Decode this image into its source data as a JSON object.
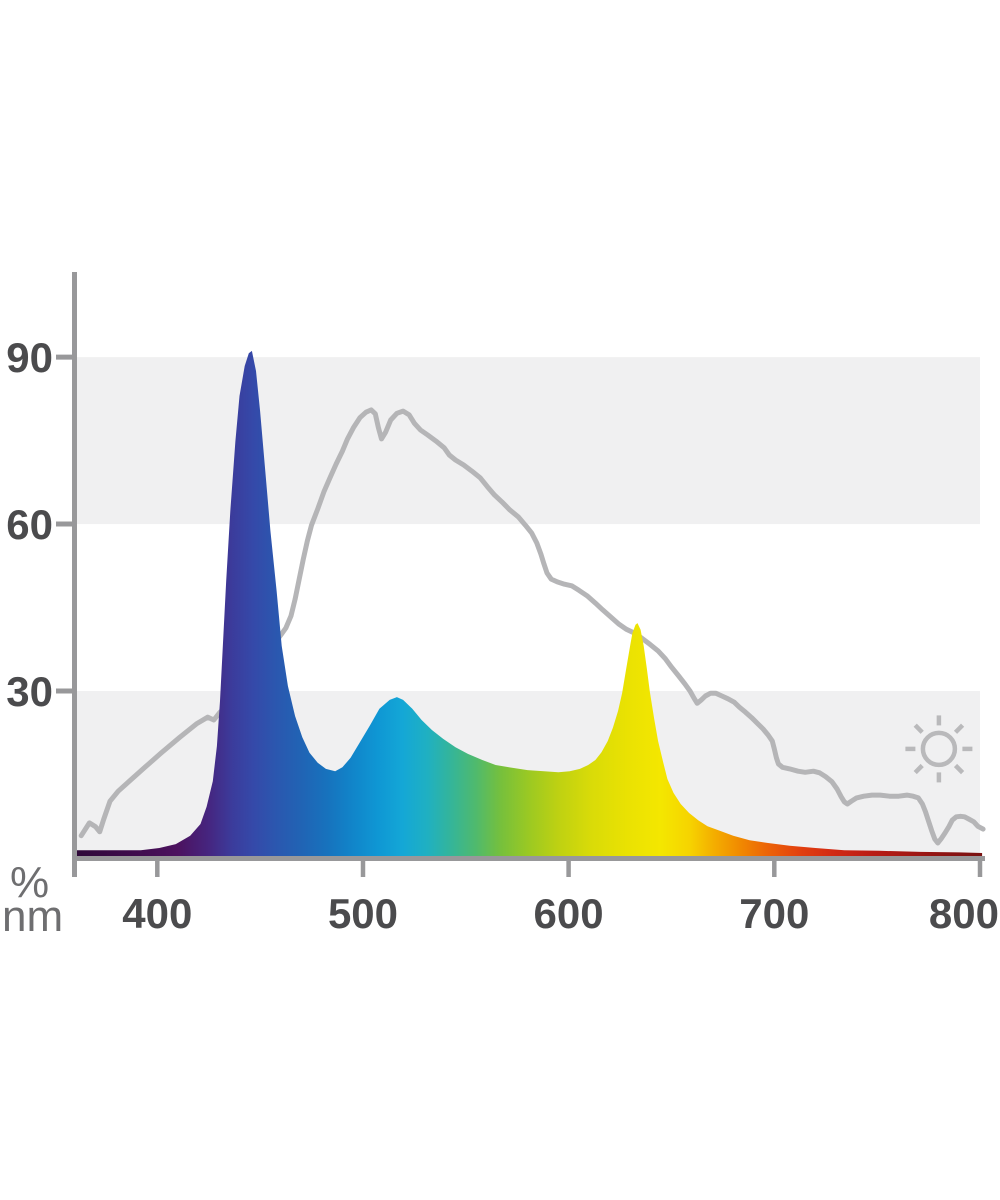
{
  "colors": {
    "background": "#ffffff",
    "band": "#f0f0f1",
    "axis": "#98989a",
    "reference_curve": "#b5b5b7",
    "tick_label": "#4b4b4d",
    "unit_label": "#6e6e70",
    "sun_icon": "#b9b9bb"
  },
  "chart_data": {
    "type": "area",
    "title": "",
    "xlabel": "nm",
    "ylabel": "%",
    "xlim": [
      360,
      802
    ],
    "ylim": [
      0,
      105
    ],
    "x_ticks": [
      400,
      500,
      600,
      700,
      800
    ],
    "y_ticks": [
      90,
      60,
      30
    ],
    "grid_bands_pct": [
      [
        60,
        90
      ],
      [
        0,
        30
      ]
    ],
    "legend": "none",
    "annotations": [
      {
        "type": "sun-icon",
        "x_nm": 780,
        "y_pct": 19.6
      }
    ],
    "gradient_stops": [
      [
        360,
        "#2e0838"
      ],
      [
        390,
        "#400d4e"
      ],
      [
        410,
        "#4c125f"
      ],
      [
        425,
        "#46257f"
      ],
      [
        437,
        "#3b3c9c"
      ],
      [
        447,
        "#3549a9"
      ],
      [
        458,
        "#2b57af"
      ],
      [
        470,
        "#2163b4"
      ],
      [
        483,
        "#1772bd"
      ],
      [
        495,
        "#1184c9"
      ],
      [
        508,
        "#0f97d4"
      ],
      [
        520,
        "#14a7d6"
      ],
      [
        532,
        "#1fb0c2"
      ],
      [
        544,
        "#35b598"
      ],
      [
        556,
        "#50ba6c"
      ],
      [
        568,
        "#76c03c"
      ],
      [
        582,
        "#9cc922"
      ],
      [
        596,
        "#bed112"
      ],
      [
        612,
        "#d9db08"
      ],
      [
        630,
        "#eae202"
      ],
      [
        646,
        "#f4e700"
      ],
      [
        660,
        "#f6d400"
      ],
      [
        672,
        "#f4ae00"
      ],
      [
        684,
        "#f18c00"
      ],
      [
        698,
        "#ec6407"
      ],
      [
        714,
        "#e2400f"
      ],
      [
        730,
        "#d22a14"
      ],
      [
        748,
        "#bb1d16"
      ],
      [
        768,
        "#a21714"
      ],
      [
        785,
        "#8c1312"
      ],
      [
        801,
        "#7a1111"
      ]
    ],
    "series": [
      {
        "name": "led-spectrum",
        "style": "area-spectral-gradient",
        "points": [
          [
            360,
            1.4
          ],
          [
            385,
            1.4
          ],
          [
            392,
            1.4
          ],
          [
            401,
            1.8
          ],
          [
            409,
            2.5
          ],
          [
            416,
            4
          ],
          [
            421,
            6.1
          ],
          [
            424,
            9.2
          ],
          [
            427,
            13.8
          ],
          [
            429,
            20.1
          ],
          [
            430.5,
            28.2
          ],
          [
            432,
            39
          ],
          [
            433.5,
            49.8
          ],
          [
            435.5,
            62.3
          ],
          [
            438,
            74.9
          ],
          [
            440,
            83
          ],
          [
            442.5,
            88.4
          ],
          [
            444.5,
            90.7
          ],
          [
            446,
            91.1
          ],
          [
            448,
            87.5
          ],
          [
            450,
            80.3
          ],
          [
            452.5,
            69.5
          ],
          [
            455,
            58.8
          ],
          [
            458,
            48
          ],
          [
            460.5,
            38.1
          ],
          [
            463.5,
            30.9
          ],
          [
            467,
            25.5
          ],
          [
            470.5,
            21.7
          ],
          [
            474,
            18.9
          ],
          [
            478,
            17.1
          ],
          [
            482,
            16
          ],
          [
            486.5,
            15.6
          ],
          [
            490,
            16.3
          ],
          [
            494,
            18
          ],
          [
            498.5,
            20.8
          ],
          [
            503.5,
            23.9
          ],
          [
            508,
            26.8
          ],
          [
            513,
            28.4
          ],
          [
            516.5,
            28.9
          ],
          [
            519.5,
            28.4
          ],
          [
            524,
            26.8
          ],
          [
            528.5,
            24.8
          ],
          [
            533.5,
            23
          ],
          [
            539,
            21.4
          ],
          [
            545,
            19.9
          ],
          [
            551,
            18.7
          ],
          [
            558,
            17.6
          ],
          [
            564.5,
            16.7
          ],
          [
            572.5,
            16.2
          ],
          [
            580,
            15.8
          ],
          [
            588,
            15.6
          ],
          [
            595,
            15.4
          ],
          [
            600.5,
            15.6
          ],
          [
            605.5,
            16
          ],
          [
            609.5,
            16.7
          ],
          [
            613,
            17.6
          ],
          [
            616,
            19
          ],
          [
            619,
            21
          ],
          [
            621.5,
            23.4
          ],
          [
            624,
            26.4
          ],
          [
            626,
            29.6
          ],
          [
            628,
            34
          ],
          [
            630,
            38.3
          ],
          [
            631,
            40.4
          ],
          [
            632.5,
            41.9
          ],
          [
            633.5,
            42.2
          ],
          [
            635,
            41
          ],
          [
            636.5,
            38.1
          ],
          [
            638,
            34.1
          ],
          [
            639.5,
            29.8
          ],
          [
            641.5,
            25.2
          ],
          [
            643.5,
            21
          ],
          [
            646,
            17.1
          ],
          [
            648,
            14.2
          ],
          [
            651,
            11.7
          ],
          [
            654.5,
            9.7
          ],
          [
            658.5,
            8.1
          ],
          [
            663,
            6.8
          ],
          [
            667.5,
            5.7
          ],
          [
            673.5,
            4.9
          ],
          [
            680,
            4
          ],
          [
            688,
            3.2
          ],
          [
            697,
            2.7
          ],
          [
            707.5,
            2.2
          ],
          [
            720,
            1.8
          ],
          [
            734,
            1.4
          ],
          [
            751,
            1.3
          ],
          [
            771,
            1.1
          ],
          [
            790,
            1
          ],
          [
            801,
            0.9
          ]
        ]
      },
      {
        "name": "reference-curve",
        "style": "gray-line",
        "points": [
          [
            363,
            4
          ],
          [
            367,
            6.3
          ],
          [
            370,
            5.6
          ],
          [
            372,
            4.7
          ],
          [
            374,
            7
          ],
          [
            377,
            10.2
          ],
          [
            381,
            12
          ],
          [
            387,
            14
          ],
          [
            394,
            16.3
          ],
          [
            402,
            18.9
          ],
          [
            411,
            21.7
          ],
          [
            419,
            24.1
          ],
          [
            424.5,
            25.3
          ],
          [
            427.5,
            24.8
          ],
          [
            430.5,
            26.2
          ],
          [
            436,
            28
          ],
          [
            442,
            30.4
          ],
          [
            447,
            32.9
          ],
          [
            451.5,
            35.6
          ],
          [
            455,
            37.7
          ],
          [
            459,
            39.5
          ],
          [
            462.5,
            41.3
          ],
          [
            465,
            43.5
          ],
          [
            467,
            46.5
          ],
          [
            469,
            50.1
          ],
          [
            471,
            53.7
          ],
          [
            473,
            57
          ],
          [
            475,
            59.8
          ],
          [
            478,
            62.7
          ],
          [
            481,
            65.8
          ],
          [
            484,
            68.3
          ],
          [
            487,
            70.8
          ],
          [
            490,
            73.1
          ],
          [
            492.5,
            75.3
          ],
          [
            495.5,
            77.4
          ],
          [
            498.5,
            79.1
          ],
          [
            501.5,
            80.1
          ],
          [
            504,
            80.5
          ],
          [
            506,
            79.8
          ],
          [
            507.5,
            77.3
          ],
          [
            509,
            75.3
          ],
          [
            511,
            76.5
          ],
          [
            513.5,
            78.7
          ],
          [
            516.5,
            79.9
          ],
          [
            519.5,
            80.3
          ],
          [
            522.5,
            79.6
          ],
          [
            525,
            78.1
          ],
          [
            528,
            76.9
          ],
          [
            531.5,
            76
          ],
          [
            535.5,
            74.9
          ],
          [
            539.5,
            73.7
          ],
          [
            542,
            72.4
          ],
          [
            545,
            71.5
          ],
          [
            549,
            70.6
          ],
          [
            553,
            69.5
          ],
          [
            557,
            68.3
          ],
          [
            560.5,
            66.7
          ],
          [
            564,
            65.2
          ],
          [
            567.5,
            64
          ],
          [
            571.5,
            62.5
          ],
          [
            575.5,
            61.3
          ],
          [
            579,
            59.8
          ],
          [
            582,
            58.4
          ],
          [
            584.5,
            56.6
          ],
          [
            586.5,
            54.6
          ],
          [
            588,
            52.8
          ],
          [
            589.5,
            51.2
          ],
          [
            591.5,
            50.1
          ],
          [
            594.5,
            49.6
          ],
          [
            598,
            49.2
          ],
          [
            601.5,
            48.9
          ],
          [
            605,
            48.1
          ],
          [
            609,
            47.1
          ],
          [
            613,
            45.8
          ],
          [
            616.5,
            44.6
          ],
          [
            620.5,
            43.3
          ],
          [
            624.5,
            42
          ],
          [
            628,
            41.1
          ],
          [
            632,
            40.4
          ],
          [
            635.5,
            39.5
          ],
          [
            639.5,
            38.4
          ],
          [
            643.5,
            37.2
          ],
          [
            647,
            35.8
          ],
          [
            650,
            34.3
          ],
          [
            653.5,
            32.7
          ],
          [
            656.5,
            31.3
          ],
          [
            659,
            30
          ],
          [
            661,
            28.7
          ],
          [
            662.5,
            27.8
          ],
          [
            664.5,
            28.4
          ],
          [
            666.5,
            29.1
          ],
          [
            669,
            29.6
          ],
          [
            671.5,
            29.6
          ],
          [
            674.5,
            29.1
          ],
          [
            677.5,
            28.6
          ],
          [
            680.5,
            28
          ],
          [
            683,
            27.1
          ],
          [
            686,
            26.2
          ],
          [
            689,
            25.2
          ],
          [
            692,
            24.1
          ],
          [
            694.5,
            23.2
          ],
          [
            697,
            22.1
          ],
          [
            699,
            21
          ],
          [
            700,
            19.6
          ],
          [
            701,
            18
          ],
          [
            702,
            16.9
          ],
          [
            704,
            16.3
          ],
          [
            707.5,
            16
          ],
          [
            711.5,
            15.6
          ],
          [
            715,
            15.4
          ],
          [
            719,
            15.6
          ],
          [
            722,
            15.3
          ],
          [
            725,
            14.6
          ],
          [
            728,
            13.7
          ],
          [
            730.5,
            12.4
          ],
          [
            732.5,
            11
          ],
          [
            734,
            10.1
          ],
          [
            735.5,
            9.7
          ],
          [
            737.5,
            10.2
          ],
          [
            740,
            10.8
          ],
          [
            743.5,
            11.1
          ],
          [
            747.5,
            11.3
          ],
          [
            751.5,
            11.3
          ],
          [
            756,
            11.1
          ],
          [
            760.5,
            11.1
          ],
          [
            764.5,
            11.3
          ],
          [
            767.5,
            11.1
          ],
          [
            770,
            10.8
          ],
          [
            772,
            9.7
          ],
          [
            773.5,
            8.3
          ],
          [
            775,
            6.6
          ],
          [
            776.5,
            4.9
          ],
          [
            778,
            3.4
          ],
          [
            779.5,
            2.7
          ],
          [
            781,
            3.4
          ],
          [
            783,
            4.5
          ],
          [
            785,
            5.7
          ],
          [
            786.5,
            6.8
          ],
          [
            788.5,
            7.4
          ],
          [
            790.5,
            7.5
          ],
          [
            792.5,
            7.4
          ],
          [
            794.5,
            7
          ],
          [
            797,
            6.5
          ],
          [
            799,
            5.7
          ],
          [
            801.5,
            5.2
          ]
        ]
      }
    ]
  }
}
